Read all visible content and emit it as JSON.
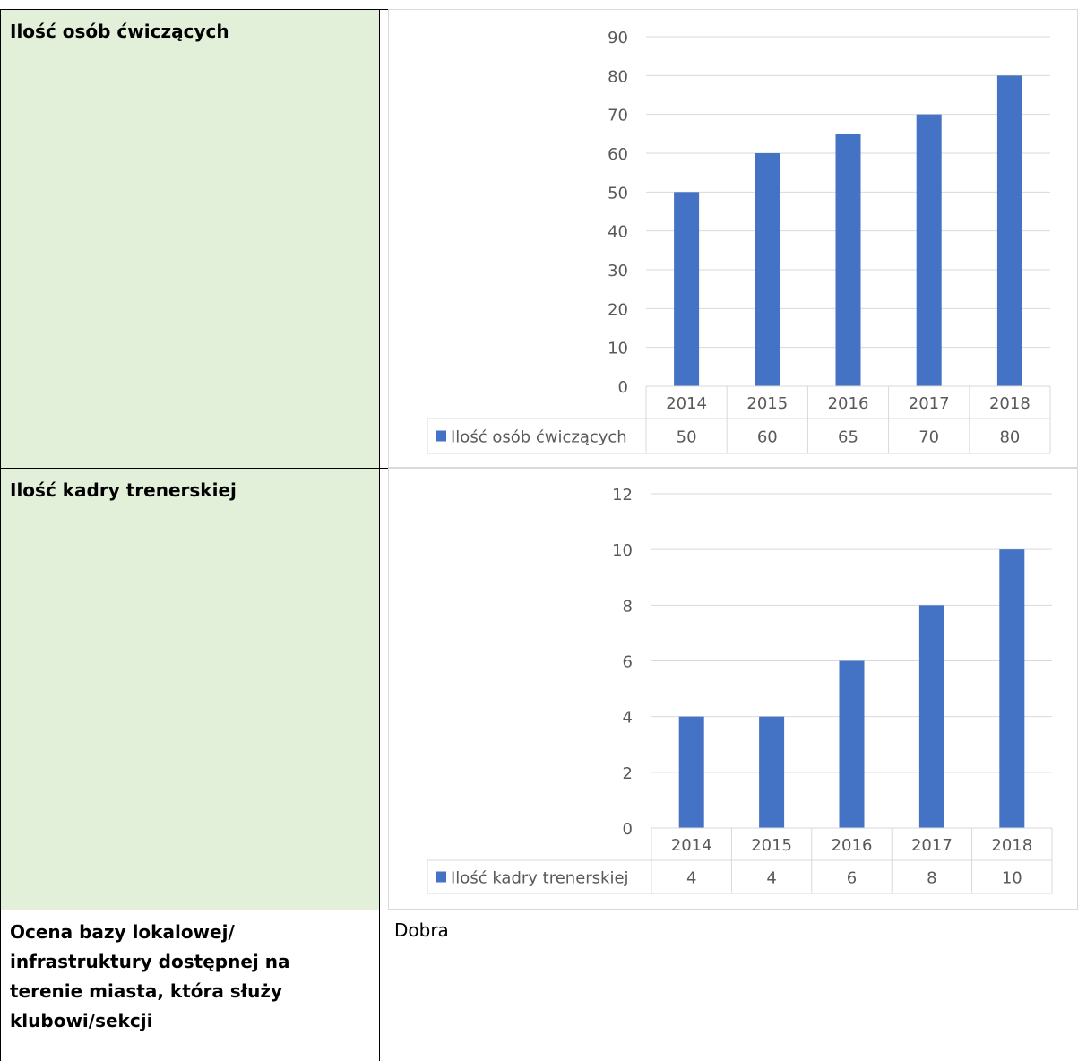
{
  "rows": [
    {
      "label": "Ilość osób ćwiczących"
    },
    {
      "label": "Ilość kadry trenerskiej"
    },
    {
      "label_lines": [
        "Ocena bazy lokalowej/",
        "infrastruktury dostępnej na",
        "terenie miasta, która służy",
        "klubowi/sekcji"
      ],
      "value": "Dobra"
    }
  ],
  "chart_data": [
    {
      "type": "bar",
      "categories": [
        "2014",
        "2015",
        "2016",
        "2017",
        "2018"
      ],
      "series": [
        {
          "name": "Ilość osób ćwiczących",
          "values": [
            50,
            60,
            65,
            70,
            80
          ],
          "color": "#4472c4"
        }
      ],
      "ylim": [
        0,
        90
      ],
      "yticks": [
        0,
        10,
        20,
        30,
        40,
        50,
        60,
        70,
        80,
        90
      ],
      "grid": true,
      "legend": "data-table"
    },
    {
      "type": "bar",
      "categories": [
        "2014",
        "2015",
        "2016",
        "2017",
        "2018"
      ],
      "series": [
        {
          "name": "Ilość kadry trenerskiej",
          "values": [
            4,
            4,
            6,
            8,
            10
          ],
          "color": "#4472c4"
        }
      ],
      "ylim": [
        0,
        12
      ],
      "yticks": [
        0,
        2,
        4,
        6,
        8,
        10,
        12
      ],
      "grid": true,
      "legend": "data-table"
    }
  ]
}
